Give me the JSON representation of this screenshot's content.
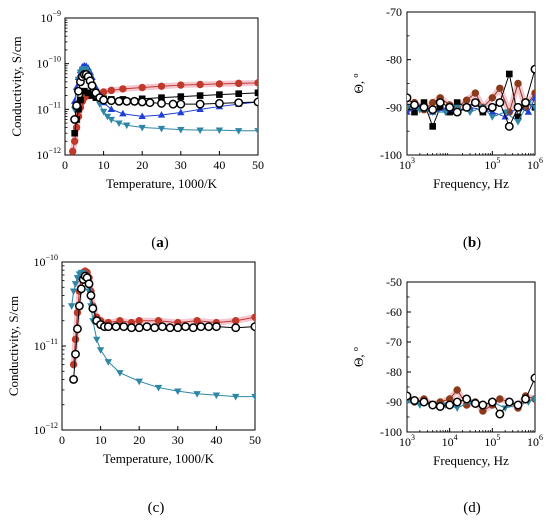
{
  "colors": {
    "red": "#c0392b",
    "blue": "#1f3fd6",
    "teal": "#2e86a6",
    "black": "#000000",
    "brown": "#8b3a1a",
    "pink": "#f2b8c6"
  },
  "chart_data": [
    {
      "panel": "a",
      "label_prefix": "(",
      "label_letter": "a",
      "label_suffix": ")",
      "label_bold": true,
      "type": "scatter",
      "xlabel": "Temperature, 1000/K",
      "ylabel": "Conductivity, S/cm",
      "xlim": [
        0,
        50
      ],
      "ylim": [
        1e-12,
        1e-09
      ],
      "yscale": "log",
      "xticks": [
        0,
        10,
        20,
        30,
        40,
        50
      ],
      "yticks": [
        {
          "value": 1e-12,
          "mantissa": "10",
          "exp": "−12"
        },
        {
          "value": 1e-11,
          "mantissa": "10",
          "exp": "−11"
        },
        {
          "value": 1e-10,
          "mantissa": "10",
          "exp": "−10"
        },
        {
          "value": 1e-09,
          "mantissa": "10",
          "exp": "−9"
        }
      ],
      "series": [
        {
          "marker": "circle-filled",
          "color": "#c0392b",
          "band": true,
          "x": [
            2,
            2.5,
            3,
            3.5,
            4,
            4.5,
            5,
            6,
            7,
            8,
            10,
            12,
            15,
            20,
            25,
            30,
            35,
            40,
            45,
            50
          ],
          "y": [
            1.2e-12,
            2e-12,
            4e-12,
            7e-12,
            1.1e-11,
            1.5e-11,
            1.8e-11,
            2e-11,
            2.1e-11,
            2.2e-11,
            2.4e-11,
            2.6e-11,
            2.8e-11,
            3e-11,
            3.2e-11,
            3.4e-11,
            3.5e-11,
            3.6e-11,
            3.7e-11,
            3.8e-11
          ]
        },
        {
          "marker": "square",
          "color": "#000000",
          "band": false,
          "x": [
            2.5,
            3,
            3.5,
            4,
            5,
            6,
            7,
            8,
            10,
            12,
            15,
            20,
            25,
            30,
            35,
            40,
            45,
            50
          ],
          "y": [
            3e-12,
            6e-12,
            1e-11,
            1.6e-11,
            2.5e-11,
            2.3e-11,
            2e-11,
            1.8e-11,
            1.7e-11,
            1.65e-11,
            1.65e-11,
            1.7e-11,
            1.8e-11,
            1.9e-11,
            2e-11,
            2.1e-11,
            2.2e-11,
            2.3e-11
          ]
        },
        {
          "marker": "triangle-up",
          "color": "#1f3fd6",
          "band": false,
          "x": [
            2.5,
            3,
            3.5,
            4,
            4.5,
            5,
            5.5,
            6,
            6.5,
            7,
            8,
            9,
            10,
            12,
            15,
            20,
            25,
            30,
            35,
            40,
            45,
            50
          ],
          "y": [
            1.5e-11,
            3e-11,
            5e-11,
            7e-11,
            8.5e-11,
            9e-11,
            8.8e-11,
            8e-11,
            6.5e-11,
            5e-11,
            3e-11,
            2e-11,
            1.4e-11,
            1e-11,
            8e-12,
            7e-12,
            7.5e-12,
            8.5e-12,
            1e-11,
            1.15e-11,
            1.3e-11,
            1.45e-11
          ]
        },
        {
          "marker": "triangle-down",
          "color": "#2e86a6",
          "band": false,
          "x": [
            2.5,
            3,
            3.5,
            4,
            4.5,
            5,
            5.5,
            6,
            6.5,
            7,
            8,
            9,
            10,
            11,
            12,
            14,
            16,
            20,
            25,
            30,
            35,
            40,
            45,
            50
          ],
          "y": [
            1e-11,
            2.5e-11,
            4.5e-11,
            6.5e-11,
            7.5e-11,
            7.8e-11,
            7.5e-11,
            6.5e-11,
            5e-11,
            3.5e-11,
            2e-11,
            1.3e-11,
            9e-12,
            7e-12,
            6e-12,
            5e-12,
            4.5e-12,
            4e-12,
            3.8e-12,
            3.6e-12,
            3.5e-12,
            3.5e-12,
            3.4e-12,
            3.4e-12
          ]
        },
        {
          "marker": "circle-open",
          "color": "#000000",
          "band": false,
          "x": [
            2.5,
            3,
            3.5,
            4,
            4.5,
            5,
            5.5,
            6,
            6.5,
            7,
            8,
            9,
            10,
            12,
            14,
            16,
            18,
            20,
            22,
            25,
            28,
            30,
            35,
            40,
            45,
            50
          ],
          "y": [
            6e-12,
            1.2e-11,
            2.5e-11,
            4e-11,
            5.2e-11,
            5.8e-11,
            5.8e-11,
            5.2e-11,
            4.2e-11,
            3.3e-11,
            2.3e-11,
            1.8e-11,
            1.6e-11,
            1.55e-11,
            1.5e-11,
            1.5e-11,
            1.5e-11,
            1.45e-11,
            1.4e-11,
            1.35e-11,
            1.3e-11,
            1.3e-11,
            1.3e-11,
            1.35e-11,
            1.4e-11,
            1.45e-11
          ]
        }
      ]
    },
    {
      "panel": "b",
      "label_prefix": "(",
      "label_letter": "b",
      "label_suffix": ")",
      "label_bold": true,
      "type": "line",
      "xlabel": "Frequency, Hz",
      "ylabel": "Θ, º",
      "xscale": "log",
      "xlim": [
        1000,
        1000000
      ],
      "ylim": [
        -100,
        -70
      ],
      "xticks": [
        {
          "value": 1000,
          "mantissa": "10",
          "exp": "3"
        },
        {
          "value": 100000,
          "mantissa": "10",
          "exp": "5"
        },
        {
          "value": 1000000,
          "mantissa": "10",
          "exp": "6"
        }
      ],
      "yticks": [
        -100,
        -90,
        -80,
        -70
      ],
      "series": [
        {
          "marker": "circle-filled",
          "color": "#8b3a1a",
          "band": true,
          "x": [
            1000,
            1500,
            2500,
            4000,
            6000,
            10000,
            15000,
            25000,
            40000,
            60000,
            100000,
            150000,
            250000,
            400000,
            600000,
            1000000
          ],
          "y": [
            -90,
            -89,
            -90.5,
            -89,
            -88,
            -89.5,
            -90,
            -88.5,
            -87,
            -90,
            -88,
            -86,
            -91,
            -85,
            -90,
            -87
          ]
        },
        {
          "marker": "square",
          "color": "#000000",
          "band": false,
          "x": [
            1000,
            1500,
            2500,
            4000,
            6000,
            10000,
            15000,
            25000,
            40000,
            60000,
            100000,
            150000,
            250000,
            400000,
            600000,
            1000000
          ],
          "y": [
            -90,
            -91,
            -89,
            -94,
            -90,
            -91,
            -89,
            -90,
            -89,
            -91,
            -90,
            -89,
            -83,
            -92,
            -89,
            -90
          ]
        },
        {
          "marker": "triangle-up",
          "color": "#1f3fd6",
          "band": false,
          "x": [
            1000,
            2000,
            4000,
            8000,
            15000,
            30000,
            60000,
            100000,
            200000,
            400000,
            700000,
            1000000
          ],
          "y": [
            -91,
            -90,
            -91,
            -90.5,
            -91,
            -90,
            -90.5,
            -91,
            -92,
            -90,
            -91,
            -88
          ]
        },
        {
          "marker": "triangle-down",
          "color": "#2e86a6",
          "band": false,
          "x": [
            1000,
            2000,
            4000,
            8000,
            15000,
            30000,
            60000,
            100000,
            200000,
            400000,
            700000,
            1000000
          ],
          "y": [
            -90,
            -90.5,
            -91,
            -91,
            -90,
            -91,
            -90,
            -92,
            -91,
            -93,
            -89,
            -90
          ]
        },
        {
          "marker": "circle-open",
          "color": "#000000",
          "band": false,
          "x": [
            1000,
            1500,
            2500,
            4000,
            6000,
            10000,
            15000,
            25000,
            40000,
            60000,
            100000,
            150000,
            250000,
            400000,
            600000,
            1000000
          ],
          "y": [
            -88,
            -89.5,
            -90,
            -90.5,
            -89,
            -90,
            -91,
            -90,
            -89,
            -90.5,
            -90,
            -89,
            -94,
            -90,
            -89,
            -82
          ]
        }
      ]
    },
    {
      "panel": "c",
      "label_prefix": "(",
      "label_letter": "c",
      "label_suffix": ")",
      "label_bold": false,
      "type": "scatter",
      "xlabel": "Temperature, 1000/K",
      "ylabel": "Conductivity, S/cm",
      "xlim": [
        0,
        50
      ],
      "ylim": [
        1e-12,
        1e-10
      ],
      "yscale": "log",
      "xticks": [
        0,
        10,
        20,
        30,
        40,
        50
      ],
      "yticks": [
        {
          "value": 1e-12,
          "mantissa": "10",
          "exp": "−12"
        },
        {
          "value": 1e-11,
          "mantissa": "10",
          "exp": "−11"
        },
        {
          "value": 1e-10,
          "mantissa": "10",
          "exp": "−10"
        }
      ],
      "series": [
        {
          "marker": "circle-filled",
          "color": "#c0392b",
          "band": true,
          "x": [
            3,
            3.5,
            4,
            4.5,
            5,
            5.5,
            6,
            6.5,
            7,
            7.5,
            8,
            9,
            10,
            12,
            15,
            18,
            20,
            25,
            30,
            35,
            40,
            45,
            50
          ],
          "y": [
            6e-12,
            1.2e-11,
            2.5e-11,
            4.5e-11,
            6.5e-11,
            7.5e-11,
            7.8e-11,
            7.5e-11,
            6.5e-11,
            4.5e-11,
            3e-11,
            2.2e-11,
            2e-11,
            1.9e-11,
            2e-11,
            1.9e-11,
            2e-11,
            2e-11,
            1.9e-11,
            2e-11,
            1.9e-11,
            2e-11,
            2.2e-11
          ]
        },
        {
          "marker": "triangle-down",
          "color": "#2e86a6",
          "band": false,
          "x": [
            2.5,
            3,
            3.5,
            4,
            4.5,
            5,
            5.5,
            6,
            6.5,
            7,
            7.5,
            8,
            9,
            10,
            12,
            15,
            20,
            25,
            30,
            35,
            40,
            45,
            50
          ],
          "y": [
            3e-11,
            4.5e-11,
            5.5e-11,
            6.5e-11,
            7.2e-11,
            7.5e-11,
            7.4e-11,
            7e-11,
            6e-11,
            4.5e-11,
            3e-11,
            2e-11,
            1.2e-11,
            9e-12,
            6.5e-12,
            4.8e-12,
            3.8e-12,
            3.2e-12,
            2.9e-12,
            2.7e-12,
            2.6e-12,
            2.5e-12,
            2.5e-12
          ]
        },
        {
          "marker": "circle-open",
          "color": "#000000",
          "band": false,
          "x": [
            3,
            3.5,
            4,
            4.5,
            5,
            5.5,
            6,
            6.5,
            7,
            7.5,
            8,
            9,
            10,
            11,
            12,
            14,
            16,
            18,
            20,
            22,
            24,
            26,
            28,
            30,
            32,
            34,
            36,
            38,
            40,
            45,
            50
          ],
          "y": [
            4e-12,
            8e-12,
            1.6e-11,
            3e-11,
            4.8e-11,
            6.2e-11,
            6.8e-11,
            6.5e-11,
            5.5e-11,
            4e-11,
            2.8e-11,
            2e-11,
            1.8e-11,
            1.7e-11,
            1.7e-11,
            1.7e-11,
            1.7e-11,
            1.65e-11,
            1.65e-11,
            1.7e-11,
            1.65e-11,
            1.7e-11,
            1.65e-11,
            1.65e-11,
            1.7e-11,
            1.65e-11,
            1.7e-11,
            1.7e-11,
            1.7e-11,
            1.65e-11,
            1.7e-11
          ]
        }
      ]
    },
    {
      "panel": "d",
      "label_prefix": "(",
      "label_letter": "d",
      "label_suffix": ")",
      "label_bold": false,
      "type": "line",
      "xlabel": "Frequency, Hz",
      "ylabel": "Θ, º",
      "xscale": "log",
      "xlim": [
        1000,
        1000000
      ],
      "ylim": [
        -100,
        -50
      ],
      "xticks": [
        {
          "value": 1000,
          "mantissa": "10",
          "exp": "3"
        },
        {
          "value": 10000,
          "mantissa": "10",
          "exp": "4"
        },
        {
          "value": 100000,
          "mantissa": "10",
          "exp": "5"
        },
        {
          "value": 1000000,
          "mantissa": "10",
          "exp": "6"
        }
      ],
      "yticks": [
        -100,
        -90,
        -80,
        -70,
        -60,
        -50
      ],
      "series": [
        {
          "marker": "circle-filled",
          "color": "#8b3a1a",
          "band": true,
          "x": [
            1000,
            1500,
            2500,
            4000,
            6000,
            10000,
            15000,
            25000,
            40000,
            60000,
            100000,
            150000,
            250000,
            400000,
            600000,
            1000000
          ],
          "y": [
            -89,
            -90,
            -89,
            -91,
            -90,
            -89,
            -86,
            -91,
            -90,
            -93,
            -91,
            -89,
            -90,
            -92,
            -88,
            -89
          ]
        },
        {
          "marker": "triangle-down",
          "color": "#2e86a6",
          "band": false,
          "x": [
            1000,
            2000,
            4000,
            8000,
            15000,
            30000,
            60000,
            100000,
            200000,
            400000,
            700000,
            1000000
          ],
          "y": [
            -90,
            -91,
            -90.5,
            -91,
            -92,
            -90,
            -91,
            -90,
            -92,
            -91,
            -90,
            -89
          ]
        },
        {
          "marker": "circle-open",
          "color": "#000000",
          "band": false,
          "x": [
            1000,
            1500,
            2500,
            4000,
            6000,
            10000,
            15000,
            25000,
            40000,
            60000,
            100000,
            150000,
            250000,
            400000,
            600000,
            1000000
          ],
          "y": [
            -88,
            -89.5,
            -90,
            -91,
            -91.5,
            -91,
            -90,
            -89,
            -90.5,
            -91,
            -90,
            -94,
            -90,
            -91,
            -89,
            -82
          ]
        }
      ]
    }
  ]
}
